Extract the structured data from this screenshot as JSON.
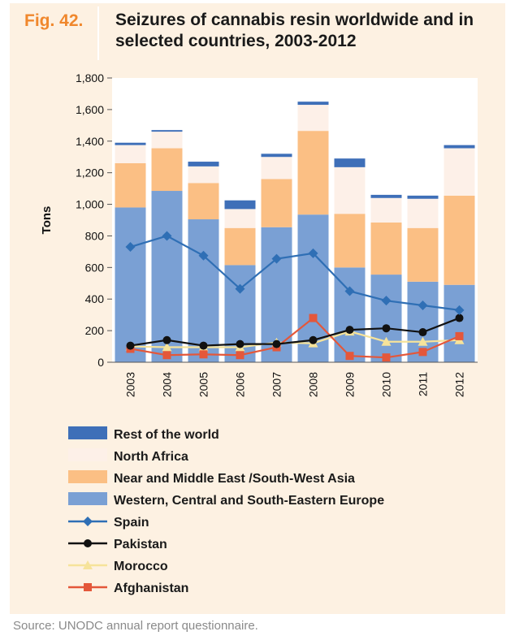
{
  "figure": {
    "label": "Fig. 42.",
    "title": "Seizures of cannabis resin worldwide and in selected countries, 2003-2012",
    "source": "Source: UNODC annual report questionnaire."
  },
  "chart_data": {
    "type": "bar",
    "stacked": true,
    "categories": [
      "2003",
      "2004",
      "2005",
      "2006",
      "2007",
      "2008",
      "2009",
      "2010",
      "2011",
      "2012"
    ],
    "ylabel": "Tons",
    "xlabel": "",
    "ylim": [
      0,
      1800
    ],
    "yticks": [
      0,
      200,
      400,
      600,
      800,
      1000,
      1200,
      1400,
      1600,
      1800
    ],
    "ytick_labels": [
      "0",
      "200",
      "400",
      "600",
      "800",
      "1,000",
      "1,200",
      "1,400",
      "1,600",
      "1,800"
    ],
    "grid": false,
    "legend_position": "bottom",
    "series": [
      {
        "name": "Western, Central and South-Eastern Europe",
        "kind": "bar",
        "color": "#7aa0d4",
        "values": [
          980,
          1085,
          905,
          615,
          855,
          935,
          600,
          555,
          510,
          490
        ]
      },
      {
        "name": "Near and Middle East /South-West Asia",
        "kind": "bar",
        "color": "#fbbf84",
        "values": [
          280,
          270,
          230,
          235,
          305,
          530,
          340,
          330,
          340,
          565
        ]
      },
      {
        "name": "North Africa",
        "kind": "bar",
        "color": "#fdf0e8",
        "values": [
          115,
          105,
          105,
          120,
          140,
          165,
          295,
          155,
          185,
          300
        ]
      },
      {
        "name": "Rest of the world",
        "kind": "bar",
        "color": "#3e6fb8",
        "values": [
          15,
          10,
          30,
          55,
          20,
          20,
          55,
          20,
          20,
          20
        ]
      },
      {
        "name": "Spain",
        "kind": "line",
        "color": "#2f6fb5",
        "marker": "diamond",
        "values": [
          730,
          800,
          675,
          465,
          655,
          690,
          450,
          390,
          360,
          330
        ]
      },
      {
        "name": "Pakistan",
        "kind": "line",
        "color": "#111111",
        "marker": "circle",
        "values": [
          105,
          140,
          105,
          115,
          115,
          140,
          205,
          215,
          190,
          280
        ]
      },
      {
        "name": "Morocco",
        "kind": "line",
        "color": "#f6e39a",
        "marker": "triangle",
        "values": [
          100,
          95,
          95,
          95,
          125,
          120,
          195,
          130,
          130,
          140
        ]
      },
      {
        "name": "Afghanistan",
        "kind": "line",
        "color": "#e4573a",
        "marker": "square",
        "values": [
          85,
          45,
          50,
          45,
          95,
          280,
          40,
          30,
          65,
          165
        ]
      }
    ],
    "legend_order": [
      "Rest of the world",
      "North Africa",
      "Near and Middle East /South-West Asia",
      "Western, Central and South-Eastern Europe",
      "Spain",
      "Pakistan",
      "Morocco",
      "Afghanistan"
    ]
  }
}
